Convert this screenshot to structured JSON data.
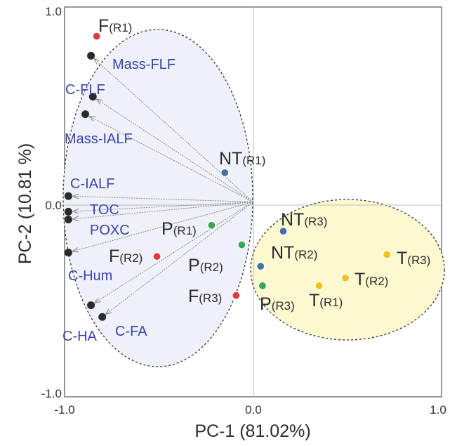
{
  "chart_data": {
    "type": "scatter",
    "title": "",
    "xlabel": "PC-1 (81.02%)",
    "ylabel": "PC-2 (10.81 %)",
    "xlim": [
      -1.0,
      1.0
    ],
    "ylim": [
      -1.0,
      1.0
    ],
    "xticks": [
      "-1.0",
      "0.0",
      "1.0"
    ],
    "yticks": [
      "1.0",
      "0.0",
      "-1.0"
    ],
    "grid": false,
    "zero_lines": true,
    "colors": {
      "variable": "#2b2b2b",
      "F": "#e23b3b",
      "P": "#3aa655",
      "NT": "#4a6fa8",
      "T": "#f2c21b",
      "label_variable": "#3b44a8",
      "ellipse_left_fill": "#eef1f9",
      "ellipse_right_fill": "#fcf8cf"
    },
    "variables": [
      {
        "name": "Mass-FLF",
        "x": -0.86,
        "y": 0.75
      },
      {
        "name": "C-FLF",
        "x": -0.85,
        "y": 0.54
      },
      {
        "name": "Mass-IALF",
        "x": -0.89,
        "y": 0.45
      },
      {
        "name": "C-IALF",
        "x": -0.98,
        "y": 0.03
      },
      {
        "name": "TOC",
        "x": -0.98,
        "y": -0.05
      },
      {
        "name": "POXC",
        "x": -0.98,
        "y": -0.09
      },
      {
        "name": "C-Hum",
        "x": -0.98,
        "y": -0.26
      },
      {
        "name": "C-HA",
        "x": -0.86,
        "y": -0.53
      },
      {
        "name": "C-FA",
        "x": -0.8,
        "y": -0.59
      }
    ],
    "series": [
      {
        "name": "F",
        "points": [
          {
            "label": "F",
            "sub": "(R1)",
            "x": -0.83,
            "y": 0.85
          },
          {
            "label": "F",
            "sub": "(R2)",
            "x": -0.51,
            "y": -0.28
          },
          {
            "label": "F",
            "sub": "(R3)",
            "x": -0.09,
            "y": -0.48
          }
        ]
      },
      {
        "name": "P",
        "points": [
          {
            "label": "P",
            "sub": "(R1)",
            "x": -0.22,
            "y": -0.12
          },
          {
            "label": "P",
            "sub": "(R2)",
            "x": -0.06,
            "y": -0.22
          },
          {
            "label": "P",
            "sub": "(R3)",
            "x": 0.05,
            "y": -0.43
          }
        ]
      },
      {
        "name": "NT",
        "points": [
          {
            "label": "NT",
            "sub": "(R1)",
            "x": -0.15,
            "y": 0.15
          },
          {
            "label": "NT",
            "sub": "(R3)",
            "x": 0.16,
            "y": -0.15
          },
          {
            "label": "NT",
            "sub": "(R2)",
            "x": 0.04,
            "y": -0.33
          }
        ]
      },
      {
        "name": "T",
        "points": [
          {
            "label": "T",
            "sub": "(R1)",
            "x": 0.35,
            "y": -0.43
          },
          {
            "label": "T",
            "sub": "(R2)",
            "x": 0.49,
            "y": -0.39
          },
          {
            "label": "T",
            "sub": "(R3)",
            "x": 0.71,
            "y": -0.27
          }
        ]
      }
    ]
  }
}
